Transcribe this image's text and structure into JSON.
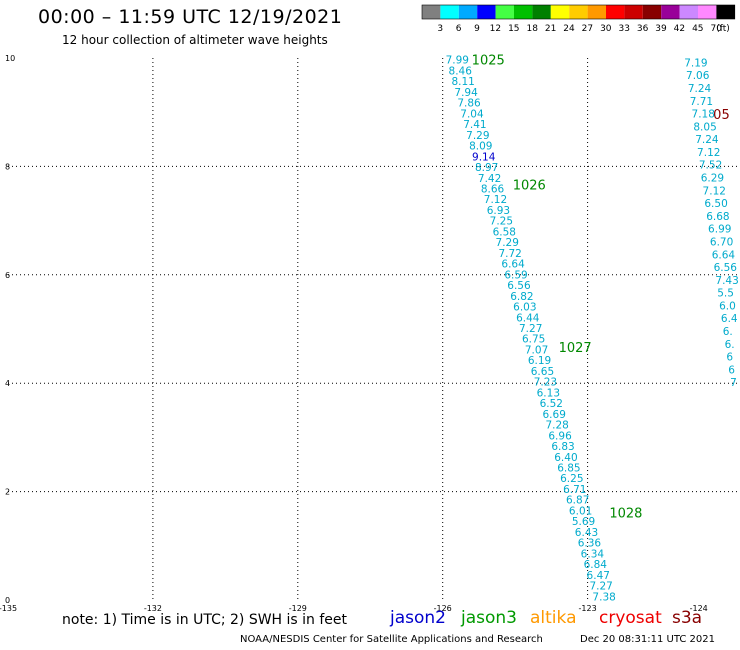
{
  "header": {
    "title": "00:00 – 11:59 UTC 12/19/2021",
    "subtitle": "12 hour collection of altimeter wave heights"
  },
  "legend": {
    "unit": "(ft)",
    "swatches": [
      {
        "label": "3",
        "color": "#808080"
      },
      {
        "label": "6",
        "color": "#00ffff"
      },
      {
        "label": "9",
        "color": "#00aaff"
      },
      {
        "label": "12",
        "color": "#0000ff"
      },
      {
        "label": "15",
        "color": "#44ff44"
      },
      {
        "label": "18",
        "color": "#00c000"
      },
      {
        "label": "21",
        "color": "#008000"
      },
      {
        "label": "24",
        "color": "#ffff00"
      },
      {
        "label": "27",
        "color": "#ffcc00"
      },
      {
        "label": "30",
        "color": "#ff9900"
      },
      {
        "label": "33",
        "color": "#ff0000"
      },
      {
        "label": "36",
        "color": "#cc0000"
      },
      {
        "label": "39",
        "color": "#880000"
      },
      {
        "label": "42",
        "color": "#990099"
      },
      {
        "label": "45",
        "color": "#cc88ff"
      },
      {
        "label": "70",
        "color": "#ff88ff"
      },
      {
        "label": "",
        "color": "#000000"
      }
    ]
  },
  "map": {
    "lon_range": [
      -135,
      -124
    ],
    "lat_range": [
      0,
      10
    ],
    "x_ticks": [
      "-135",
      "-132",
      "-129",
      "-126",
      "-123",
      "-124"
    ],
    "y_ticks": [
      "10",
      "8",
      "6",
      "4",
      "2",
      "0"
    ],
    "grid": true
  },
  "tracks": [
    {
      "color": "#00aacc",
      "lon_start": -125.94,
      "lat_start": 9.95,
      "lon_end": -122.9,
      "lat_end": 0.05,
      "values": [
        "7.99",
        "8.46",
        "8.11",
        "7.94",
        "7.86",
        "7.04",
        "7.41",
        "7.29",
        "8.09",
        "9.14",
        "8.97",
        "7.42",
        "8.66",
        "7.12",
        "6.93",
        "7.25",
        "6.58",
        "7.29",
        "7.72",
        "6.64",
        "6.59",
        "6.56",
        "6.82",
        "6.03",
        "6.44",
        "7.27",
        "6.75",
        "7.07",
        "6.19",
        "6.65",
        "7.23",
        "6.13",
        "6.52",
        "6.69",
        "7.28",
        "6.96",
        "6.83",
        "6.40",
        "6.85",
        "6.25",
        "6.71",
        "6.87",
        "6.01",
        "5.69",
        "6.43",
        "6.36",
        "6.34",
        "6.84",
        "6.47",
        "7.27",
        "7.38"
      ]
    },
    {
      "color": "#00aacc",
      "lon_start": -121.0,
      "lat_start": 9.9,
      "lon_end": -120.05,
      "lat_end": 4.0,
      "values": [
        "7.19",
        "7.06",
        "7.24",
        "7.71",
        "7.18",
        "8.05",
        "7.24",
        "7.12",
        "7.52",
        "6.29",
        "7.12",
        "6.50",
        "6.68",
        "6.99",
        "6.70",
        "6.64",
        "6.56",
        "7.43",
        "5.5",
        "6.0",
        "6.4",
        "6.",
        "6.",
        "6",
        "6",
        "7"
      ]
    }
  ],
  "highlight": {
    "value": "9.14",
    "color": "#0000cc"
  },
  "time_labels": [
    {
      "text": "1025",
      "color": "#008800",
      "lon": -125.4,
      "lat": 9.95
    },
    {
      "text": "1026",
      "color": "#008800",
      "lon": -124.55,
      "lat": 7.65
    },
    {
      "text": "1027",
      "color": "#008800",
      "lon": -123.6,
      "lat": 4.65
    },
    {
      "text": "1028",
      "color": "#008800",
      "lon": -122.55,
      "lat": 1.6
    },
    {
      "text": "05",
      "color": "#880000",
      "lon": -120.4,
      "lat": 8.95
    }
  ],
  "footer": {
    "note": "note: 1) Time is in UTC; 2) SWH is in feet",
    "satellites": [
      {
        "name": "jason2",
        "color": "#0000cc"
      },
      {
        "name": "jason3",
        "color": "#009900"
      },
      {
        "name": "altika",
        "color": "#ff9900"
      },
      {
        "name": "cryosat",
        "color": "#ee0000"
      },
      {
        "name": "s3a",
        "color": "#880000"
      }
    ],
    "credit": "NOAA/NESDIS Center for Satellite Applications and Research",
    "timestamp": "Dec 20 08:31:11 UTC 2021"
  }
}
